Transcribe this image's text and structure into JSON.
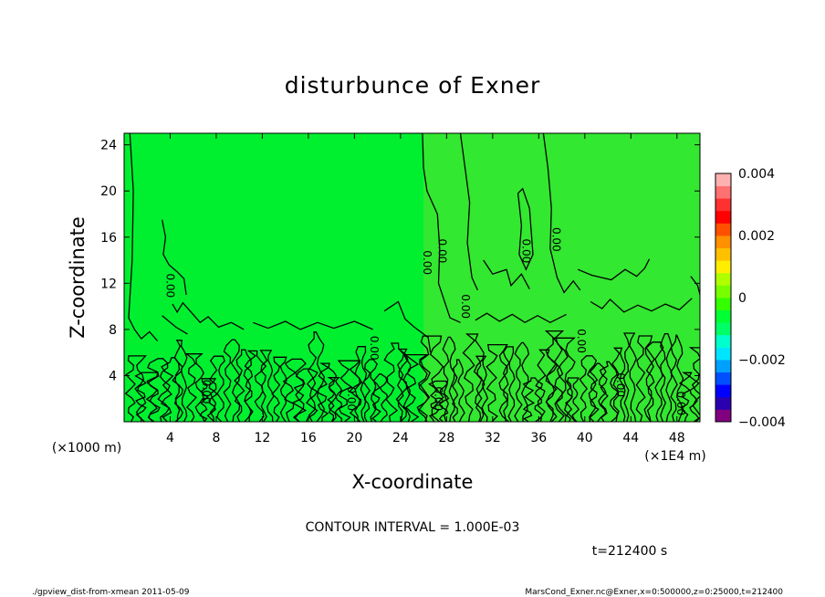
{
  "chart_data": {
    "type": "heatmap",
    "title": "disturbunce of Exner",
    "xlabel": "X-coordinate",
    "ylabel": "Z-coordinate",
    "x_unit_label": "(×1000 m)",
    "x_unit_label_right": "(×1E4 m)",
    "x_ticks": [
      4,
      8,
      12,
      16,
      20,
      24,
      28,
      32,
      36,
      40,
      44,
      48
    ],
    "y_ticks": [
      4,
      8,
      12,
      16,
      20,
      24
    ],
    "xlim": [
      0,
      50
    ],
    "ylim": [
      0,
      25
    ],
    "colorbar": {
      "min": -0.004,
      "max": 0.004,
      "tick_labels": [
        "0.004",
        "0.002",
        "0",
        "−0.002",
        "−0.004"
      ],
      "tick_values": [
        0.004,
        0.002,
        0,
        -0.002,
        -0.004
      ],
      "colors": [
        "#800080",
        "#2a00b0",
        "#0000ff",
        "#0050ff",
        "#00a0ff",
        "#00e5ff",
        "#00ffcc",
        "#00ff66",
        "#00ff33",
        "#33ff00",
        "#77ff00",
        "#b0ff00",
        "#ffee00",
        "#ffc000",
        "#ff9000",
        "#ff5000",
        "#ff0000",
        "#ff3030",
        "#ff7070",
        "#ffb0b0"
      ]
    },
    "contour_interval_text": "CONTOUR INTERVAL = 1.000E-03",
    "contour_label": "0.00",
    "background_value": 0,
    "background_color": "#00f030",
    "plume_color": "#33e830",
    "contours": [
      {
        "pts": [
          [
            0.5,
            25
          ],
          [
            0.8,
            20
          ],
          [
            0.7,
            14
          ],
          [
            0.4,
            9
          ],
          [
            0.9,
            8
          ],
          [
            1.5,
            7.2
          ],
          [
            2.2,
            7.8
          ],
          [
            2.9,
            7.0
          ]
        ]
      },
      {
        "pts": [
          [
            3.3,
            17.5
          ],
          [
            3.6,
            16
          ],
          [
            3.4,
            14.5
          ],
          [
            3.9,
            13.6
          ],
          [
            4.6,
            13
          ],
          [
            5.2,
            12.4
          ],
          [
            5.4,
            11
          ]
        ]
      },
      {
        "pts": [
          [
            4.2,
            10.2
          ],
          [
            4.6,
            9.5
          ],
          [
            5.1,
            10.3
          ],
          [
            5.9,
            9.4
          ],
          [
            6.6,
            8.6
          ],
          [
            7.3,
            9.1
          ],
          [
            8.2,
            8.2
          ],
          [
            9.3,
            8.6
          ],
          [
            10.4,
            8.0
          ]
        ]
      },
      {
        "pts": [
          [
            11.2,
            8.6
          ],
          [
            12.5,
            8.1
          ],
          [
            14,
            8.7
          ],
          [
            15.3,
            8.0
          ],
          [
            16.8,
            8.6
          ],
          [
            18.2,
            8.1
          ],
          [
            20,
            8.7
          ],
          [
            21.6,
            8.0
          ]
        ]
      },
      {
        "pts": [
          [
            22.6,
            9.6
          ],
          [
            23.8,
            10.4
          ],
          [
            24.4,
            8.9
          ],
          [
            25.2,
            8.2
          ],
          [
            26.4,
            7.3
          ],
          [
            26.6,
            6.0
          ]
        ]
      },
      {
        "pts": [
          [
            25.9,
            25
          ],
          [
            26,
            22
          ],
          [
            26.3,
            20
          ],
          [
            27.2,
            18
          ],
          [
            27.4,
            15
          ],
          [
            27.3,
            12
          ],
          [
            27.8,
            10.5
          ],
          [
            28.3,
            9.0
          ],
          [
            29.2,
            8.6
          ]
        ]
      },
      {
        "pts": [
          [
            29.2,
            25
          ],
          [
            29.6,
            22
          ],
          [
            30.0,
            19
          ],
          [
            29.8,
            15.5
          ],
          [
            30.2,
            12.5
          ],
          [
            30.7,
            11.4
          ]
        ]
      },
      {
        "pts": [
          [
            31.2,
            14
          ],
          [
            32.0,
            12.8
          ],
          [
            33.2,
            13.2
          ],
          [
            33.6,
            11.8
          ],
          [
            34.5,
            12.8
          ],
          [
            35.2,
            11.5
          ]
        ]
      },
      {
        "pts": [
          [
            34.2,
            19.8
          ],
          [
            34.5,
            17
          ],
          [
            34.3,
            14.5
          ],
          [
            34.9,
            13.2
          ],
          [
            35.5,
            14.5
          ],
          [
            35.2,
            18.5
          ],
          [
            34.6,
            20.2
          ],
          [
            34.2,
            19.8
          ]
        ]
      },
      {
        "pts": [
          [
            36.4,
            25
          ],
          [
            36.8,
            22
          ],
          [
            37.1,
            18.5
          ],
          [
            37.0,
            15
          ],
          [
            37.6,
            12.5
          ],
          [
            38.2,
            11.2
          ],
          [
            39.0,
            12.2
          ],
          [
            39.6,
            11.4
          ]
        ]
      },
      {
        "pts": [
          [
            39.4,
            13.2
          ],
          [
            40.6,
            12.7
          ],
          [
            42.3,
            12.3
          ],
          [
            43.5,
            13.2
          ],
          [
            44.5,
            12.6
          ],
          [
            45.2,
            13.3
          ],
          [
            45.6,
            14.1
          ]
        ]
      },
      {
        "pts": [
          [
            40.5,
            10.4
          ],
          [
            41.5,
            9.8
          ],
          [
            42.2,
            10.6
          ],
          [
            43.4,
            9.5
          ],
          [
            44.6,
            10.1
          ],
          [
            45.8,
            9.6
          ],
          [
            47.0,
            10.2
          ],
          [
            48.2,
            9.7
          ],
          [
            49.3,
            10.7
          ]
        ]
      },
      {
        "pts": [
          [
            49.2,
            12.6
          ],
          [
            49.8,
            11.8
          ],
          [
            50,
            11.0
          ]
        ]
      },
      {
        "pts": [
          [
            3.3,
            9.2
          ],
          [
            4.5,
            8.2
          ],
          [
            5.5,
            7.6
          ]
        ]
      },
      {
        "pts": [
          [
            30.5,
            8.8
          ],
          [
            31.5,
            9.4
          ],
          [
            32.6,
            8.7
          ],
          [
            33.7,
            9.3
          ],
          [
            34.8,
            8.6
          ],
          [
            35.9,
            9.2
          ],
          [
            37.0,
            8.6
          ],
          [
            38.4,
            9.3
          ]
        ]
      }
    ],
    "label_positions": [
      {
        "x": 3.7,
        "y": 11.8
      },
      {
        "x": 6.8,
        "y": 2.6
      },
      {
        "x": 19.4,
        "y": 2.0
      },
      {
        "x": 21.4,
        "y": 6.4
      },
      {
        "x": 26.0,
        "y": 13.8
      },
      {
        "x": 27.3,
        "y": 14.8
      },
      {
        "x": 27.0,
        "y": 2.0
      },
      {
        "x": 29.3,
        "y": 10.0
      },
      {
        "x": 34.6,
        "y": 14.8
      },
      {
        "x": 37.2,
        "y": 15.8
      },
      {
        "x": 39.4,
        "y": 7.0
      },
      {
        "x": 42.8,
        "y": 3.2
      },
      {
        "x": 48.0,
        "y": 1.6
      }
    ]
  },
  "annotations": {
    "time_label": "t=212400 s",
    "footer_left": "./gpview_dist-from-xmean   2011-05-09",
    "footer_right": "MarsCond_Exner.nc@Exner,x=0:500000,z=0:25000,t=212400"
  }
}
